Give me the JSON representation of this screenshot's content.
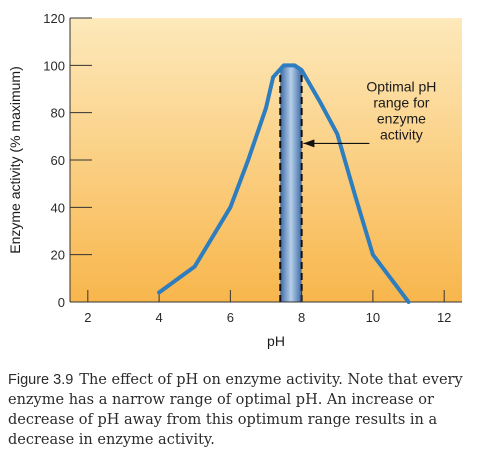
{
  "chart_data": {
    "type": "line",
    "xlabel": "pH",
    "ylabel": "Enzyme activity (% maximum)",
    "xlim": [
      1.5,
      12.5
    ],
    "ylim": [
      0,
      120
    ],
    "x_ticks": [
      2,
      4,
      6,
      8,
      10,
      12
    ],
    "y_ticks": [
      0,
      20,
      40,
      60,
      80,
      100,
      120
    ],
    "grid": false,
    "series": [
      {
        "x": [
          4,
          5,
          6,
          6.5,
          7,
          7.2,
          7.5,
          7.8,
          8,
          8.5,
          9,
          9.5,
          10,
          11
        ],
        "y": [
          4,
          15,
          40,
          60,
          82,
          95,
          100,
          100,
          98,
          85,
          71,
          45,
          20,
          0
        ]
      }
    ],
    "optimal_range": [
      7.4,
      8.0
    ],
    "annotation": "Optimal pH range for enzyme activity",
    "colors": {
      "line": "#2e7dbf",
      "background_top": "#fde6b0",
      "background_bottom": "#f7b850",
      "band": "#5f8fc4"
    }
  },
  "annotation_lines": [
    "Optimal pH",
    "range for",
    "enzyme",
    "activity"
  ],
  "caption": {
    "label": "Figure 3.9",
    "text": "The effect of pH on enzyme activity. Note that every enzyme has a narrow range of optimal pH. An increase or decrease of pH away from this optimum range results in a decrease in enzyme activity."
  }
}
